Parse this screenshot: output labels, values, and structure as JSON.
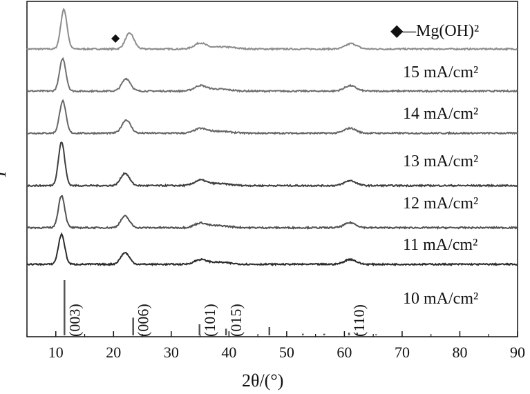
{
  "chart_data": {
    "type": "line",
    "xlabel": "2θ/(°)",
    "ylabel": "I",
    "xlim": [
      5,
      90
    ],
    "x_ticks": [
      10,
      20,
      30,
      40,
      50,
      60,
      70,
      80,
      90
    ],
    "legend": {
      "marker": "◆",
      "text": "—Mg(OH)²",
      "placement": "top-right"
    },
    "series": [
      {
        "name": "Mg(OH)₂",
        "color": "#8c8c8c",
        "baseline": 1.0,
        "peaks": [
          [
            11.4,
            0.95,
            0.55
          ],
          [
            22.8,
            0.38,
            0.75
          ],
          [
            35.0,
            0.14,
            1.0
          ],
          [
            39.0,
            0.05,
            2.0
          ],
          [
            61.2,
            0.13,
            1.0
          ]
        ]
      },
      {
        "name": "15 mA/cm²",
        "color": "#6e6e6e",
        "baseline": 1.0,
        "peaks": [
          [
            11.2,
            0.78,
            0.55
          ],
          [
            22.2,
            0.3,
            0.75
          ],
          [
            35.0,
            0.12,
            1.0
          ],
          [
            38.0,
            0.05,
            2.0
          ],
          [
            61.0,
            0.13,
            1.0
          ]
        ]
      },
      {
        "name": "14 mA/cm²",
        "color": "#666666",
        "baseline": 1.0,
        "peaks": [
          [
            11.2,
            0.78,
            0.55
          ],
          [
            22.2,
            0.32,
            0.75
          ],
          [
            35.0,
            0.1,
            1.0
          ],
          [
            38.0,
            0.05,
            2.0
          ],
          [
            61.0,
            0.12,
            1.0
          ]
        ]
      },
      {
        "name": "13 mA/cm²",
        "color": "#3c3c3c",
        "baseline": 1.0,
        "peaks": [
          [
            11.0,
            1.05,
            0.55
          ],
          [
            22.0,
            0.3,
            0.75
          ],
          [
            35.0,
            0.12,
            1.0
          ],
          [
            38.0,
            0.05,
            2.0
          ],
          [
            61.0,
            0.12,
            1.0
          ]
        ]
      },
      {
        "name": "12 mA/cm²",
        "color": "#505050",
        "baseline": 1.0,
        "peaks": [
          [
            11.0,
            0.78,
            0.55
          ],
          [
            22.0,
            0.28,
            0.75
          ],
          [
            35.0,
            0.1,
            1.0
          ],
          [
            38.0,
            0.05,
            2.0
          ],
          [
            61.0,
            0.12,
            1.0
          ]
        ]
      },
      {
        "name": "11 mA/cm²",
        "color": "#2a2a2a",
        "baseline": 1.0,
        "peaks": [
          [
            11.0,
            0.72,
            0.55
          ],
          [
            22.0,
            0.28,
            0.75
          ],
          [
            35.0,
            0.1,
            1.0
          ],
          [
            38.0,
            0.05,
            2.0
          ],
          [
            61.0,
            0.12,
            1.0
          ]
        ]
      }
    ],
    "reference": {
      "name": "10 mA/cm²",
      "lines": [
        {
          "x": 11.5,
          "h": 1.0,
          "label": "(003)"
        },
        {
          "x": 23.4,
          "h": 0.32,
          "label": "(006)"
        },
        {
          "x": 34.9,
          "h": 0.2,
          "label": "(101)"
        },
        {
          "x": 39.5,
          "h": 0.12,
          "label": "(015)"
        },
        {
          "x": 47.0,
          "h": 0.15,
          "label": ""
        },
        {
          "x": 52.8,
          "h": 0.03,
          "label": ""
        },
        {
          "x": 56.5,
          "h": 0.03,
          "label": ""
        },
        {
          "x": 60.8,
          "h": 0.05,
          "label": "(110)"
        },
        {
          "x": 62.2,
          "h": 0.05,
          "label": ""
        },
        {
          "x": 65.5,
          "h": 0.02,
          "label": ""
        }
      ]
    }
  }
}
